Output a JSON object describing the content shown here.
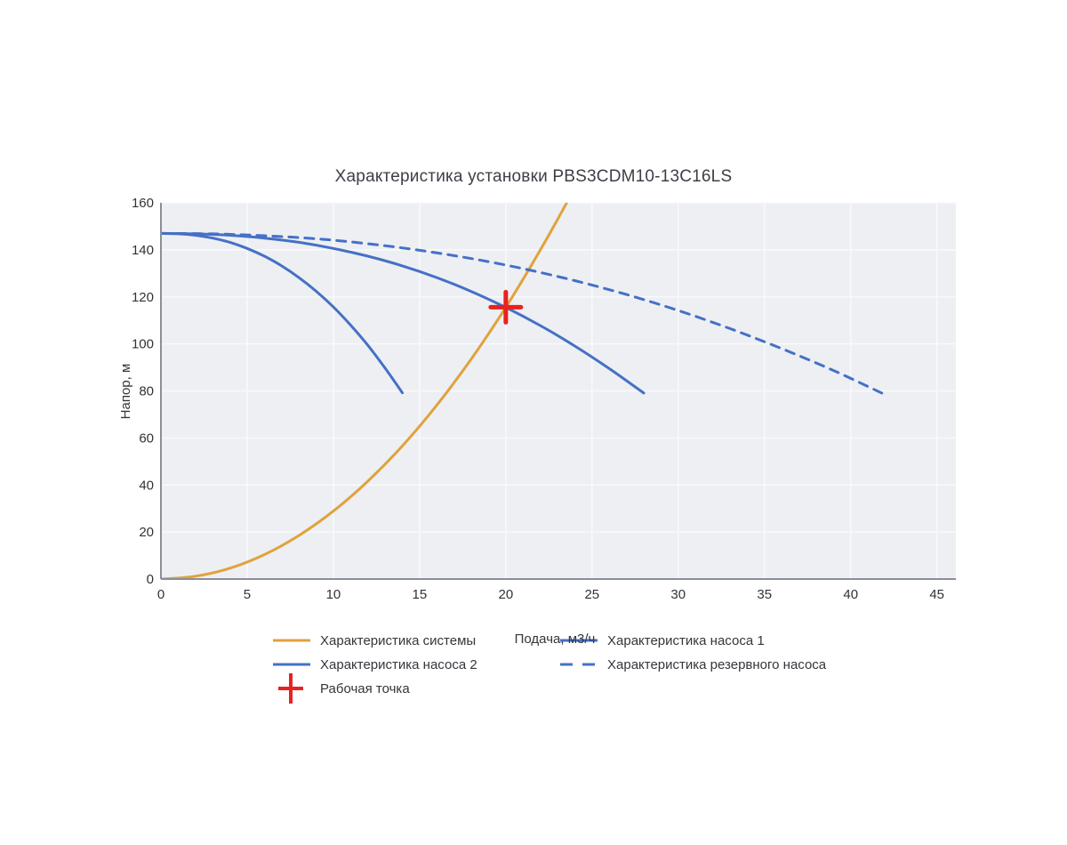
{
  "page": {
    "background": "#ffffff"
  },
  "chart_data": {
    "type": "line",
    "title": "Характеристика установки PBS3CDM10-13C16LS",
    "xlabel": "Подача, м3/ч",
    "ylabel": "Напор, м",
    "xlim": [
      0,
      46.1
    ],
    "ylim": [
      0,
      160
    ],
    "xticks": [
      0,
      5,
      10,
      15,
      20,
      25,
      30,
      35,
      40,
      45
    ],
    "yticks": [
      0,
      20,
      40,
      60,
      80,
      100,
      120,
      140,
      160
    ],
    "grid": true,
    "plot_bg": "#edeff3",
    "grid_color": "#f8f9fb",
    "axis_line_color": "#8a8f97",
    "working_point": {
      "x": 20,
      "y": 116
    },
    "series": [
      {
        "name": "Характеристика системы",
        "style": "solid",
        "color": "#E0A23C",
        "width": 3,
        "points": [
          [
            0,
            0
          ],
          [
            2,
            1.2
          ],
          [
            4,
            4.6
          ],
          [
            6,
            10.4
          ],
          [
            8,
            18.5
          ],
          [
            10,
            28.9
          ],
          [
            12,
            41.6
          ],
          [
            14,
            56.6
          ],
          [
            16,
            74.0
          ],
          [
            18,
            93.6
          ],
          [
            20,
            115.6
          ],
          [
            22,
            139.9
          ],
          [
            23.6,
            160.9
          ]
        ]
      },
      {
        "name": "Характеристика насоса 1",
        "style": "solid",
        "color": "#4570C6",
        "width": 3,
        "points": [
          [
            0,
            147
          ],
          [
            2,
            146.8
          ],
          [
            4,
            146.2
          ],
          [
            6,
            145.0
          ],
          [
            8,
            143.2
          ],
          [
            10,
            140.6
          ],
          [
            12,
            137.3
          ],
          [
            14,
            133.2
          ],
          [
            16,
            128.2
          ],
          [
            18,
            122.3
          ],
          [
            20,
            115.5
          ],
          [
            22,
            107.8
          ],
          [
            24,
            99.1
          ],
          [
            26,
            89.5
          ],
          [
            28,
            79.1
          ]
        ]
      },
      {
        "name": "Характеристика насоса 2",
        "style": "solid",
        "color": "#4570C6",
        "width": 3,
        "points": [
          [
            0,
            147
          ],
          [
            1,
            146.8
          ],
          [
            2,
            146.2
          ],
          [
            3,
            145.0
          ],
          [
            4,
            143.2
          ],
          [
            5,
            140.6
          ],
          [
            6,
            137.3
          ],
          [
            7,
            133.2
          ],
          [
            8,
            128.2
          ],
          [
            9,
            122.4
          ],
          [
            10,
            115.7
          ],
          [
            11,
            108.0
          ],
          [
            12,
            99.4
          ],
          [
            13,
            89.7
          ],
          [
            14,
            79.2
          ]
        ]
      },
      {
        "name": "Характеристика резервного насоса",
        "style": "dashed",
        "color": "#4570C6",
        "width": 3,
        "points": [
          [
            0,
            147
          ],
          [
            3,
            146.8
          ],
          [
            6,
            146.0
          ],
          [
            9,
            144.7
          ],
          [
            12,
            142.6
          ],
          [
            15,
            139.8
          ],
          [
            18,
            136.3
          ],
          [
            21,
            132.0
          ],
          [
            24,
            126.9
          ],
          [
            27,
            121.0
          ],
          [
            30,
            114.2
          ],
          [
            33,
            106.5
          ],
          [
            36,
            98.0
          ],
          [
            39,
            88.7
          ],
          [
            42,
            78.4
          ]
        ]
      },
      {
        "name": "Рабочая точка",
        "style": "cross",
        "color": "#E8221E",
        "width": 5,
        "points": [
          [
            20,
            115.6
          ]
        ]
      }
    ],
    "legend": {
      "entries": [
        {
          "label": "Характеристика системы",
          "marker": "line",
          "color": "#E0A23C",
          "col": 0,
          "row": 0
        },
        {
          "label": "Характеристика насоса 1",
          "marker": "line",
          "color": "#4570C6",
          "col": 1,
          "row": 0
        },
        {
          "label": "Характеристика насоса 2",
          "marker": "line",
          "color": "#4570C6",
          "col": 0,
          "row": 1
        },
        {
          "label": "Характеристика резервного насоса",
          "marker": "dashed-line",
          "color": "#4570C6",
          "col": 1,
          "row": 1
        },
        {
          "label": "Рабочая точка",
          "marker": "cross",
          "color": "#E8221E",
          "col": 0,
          "row": 2
        }
      ]
    }
  }
}
